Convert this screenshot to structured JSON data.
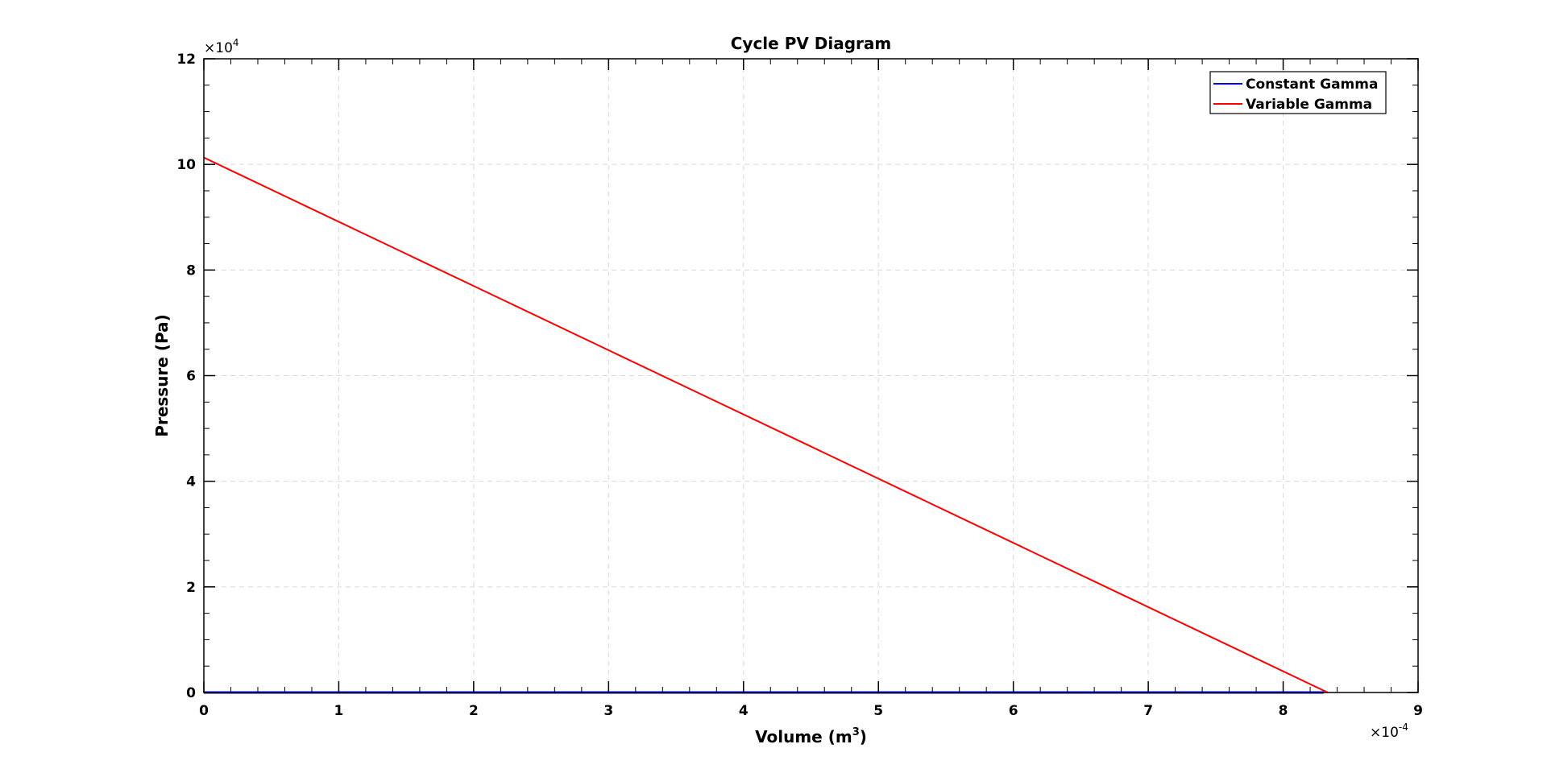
{
  "chart_data": {
    "type": "line",
    "title": "Cycle PV Diagram",
    "xlabel": "Volume (m",
    "xlabel_sup": "3",
    "xlabel_close": ")",
    "ylabel": "Pressure (Pa)",
    "x_multiplier": "10",
    "x_multiplier_exp": "-4",
    "y_multiplier": "10",
    "y_multiplier_exp": "4",
    "xlim": [
      0,
      9
    ],
    "ylim": [
      0,
      12
    ],
    "xticks": [
      "0",
      "1",
      "2",
      "3",
      "4",
      "5",
      "6",
      "7",
      "8",
      "9"
    ],
    "yticks": [
      "0",
      "2",
      "4",
      "6",
      "8",
      "10",
      "12"
    ],
    "grid": true,
    "legend_position": "top-right",
    "series": [
      {
        "name": "Constant Gamma",
        "color": "#0000ff",
        "x": [
          0,
          8.3
        ],
        "y": [
          0,
          0
        ]
      },
      {
        "name": "Variable Gamma",
        "color": "#ff0000",
        "x": [
          0,
          8.33
        ],
        "y": [
          10.13,
          0
        ]
      }
    ]
  },
  "colors": {
    "axis": "#000000",
    "grid": "#d9d9d9",
    "background": "#ffffff"
  }
}
